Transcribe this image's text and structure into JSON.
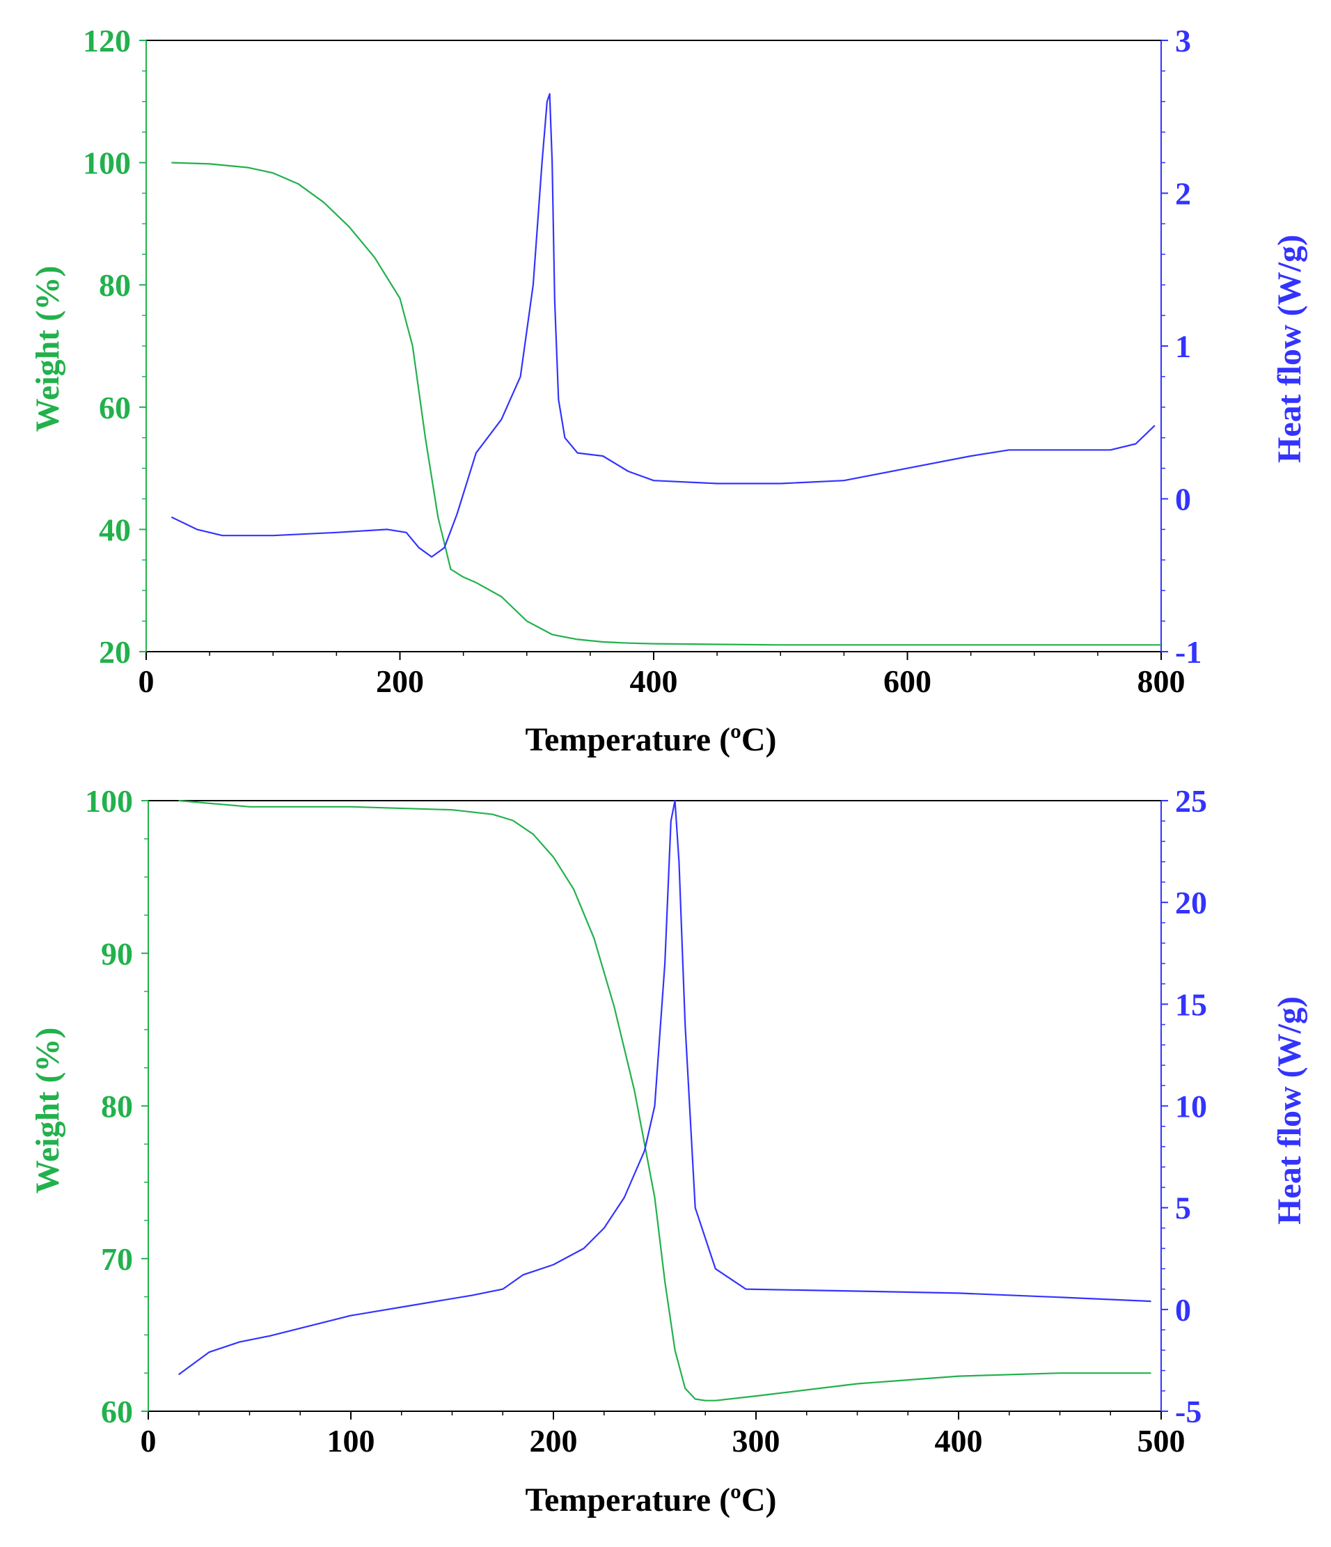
{
  "colors": {
    "weight": "#22B14C",
    "heat_flow": "#3333FF",
    "axis": "#000000"
  },
  "chart_data": [
    {
      "type": "line",
      "xlabel": "Temperature (ºC)",
      "ylabel_left": "Weight (%)",
      "ylabel_right": "Heat flow (W/g)",
      "xlim": [
        0,
        800
      ],
      "ylim_left": [
        20,
        120
      ],
      "ylim_right": [
        -1,
        3
      ],
      "x_ticks": [
        "0",
        "200",
        "400",
        "600",
        "800"
      ],
      "y_left_ticks": [
        "20",
        "40",
        "60",
        "80",
        "100",
        "120"
      ],
      "y_right_ticks": [
        "-1",
        "0",
        "1",
        "2",
        "3"
      ],
      "grid": false,
      "series": [
        {
          "axis": "left",
          "color": "#22B14C",
          "x": [
            20,
            50,
            80,
            100,
            120,
            140,
            160,
            180,
            200,
            210,
            220,
            230,
            240,
            250,
            260,
            280,
            300,
            320,
            340,
            360,
            380,
            400,
            450,
            500,
            600,
            700,
            800
          ],
          "y": [
            100,
            99.8,
            99.2,
            98.3,
            96.5,
            93.5,
            89.5,
            84.5,
            77.8,
            70,
            55,
            42,
            33.5,
            32.2,
            31.3,
            29,
            25,
            22.8,
            22,
            21.6,
            21.4,
            21.3,
            21.2,
            21.1,
            21.1,
            21.1,
            21.1
          ]
        },
        {
          "axis": "right",
          "color": "#3333FF",
          "x": [
            20,
            40,
            60,
            100,
            150,
            190,
            205,
            215,
            225,
            235,
            245,
            260,
            280,
            295,
            305,
            312,
            316,
            318,
            320,
            322,
            325,
            330,
            340,
            360,
            380,
            400,
            450,
            500,
            550,
            600,
            650,
            680,
            720,
            760,
            780,
            795
          ],
          "y": [
            -0.12,
            -0.2,
            -0.24,
            -0.24,
            -0.22,
            -0.2,
            -0.22,
            -0.32,
            -0.38,
            -0.32,
            -0.1,
            0.3,
            0.52,
            0.8,
            1.4,
            2.2,
            2.6,
            2.65,
            2.2,
            1.3,
            0.65,
            0.4,
            0.3,
            0.28,
            0.18,
            0.12,
            0.1,
            0.1,
            0.12,
            0.2,
            0.28,
            0.32,
            0.32,
            0.32,
            0.36,
            0.48
          ]
        }
      ]
    },
    {
      "type": "line",
      "xlabel": "Temperature (ºC)",
      "ylabel_left": "Weight (%)",
      "ylabel_right": "Heat flow (W/g)",
      "xlim": [
        0,
        500
      ],
      "ylim_left": [
        60,
        100
      ],
      "ylim_right": [
        -5,
        25
      ],
      "x_ticks": [
        "0",
        "100",
        "200",
        "300",
        "400",
        "500"
      ],
      "y_left_ticks": [
        "60",
        "70",
        "80",
        "90",
        "100"
      ],
      "y_right_ticks": [
        "-5",
        "0",
        "5",
        "10",
        "15",
        "20",
        "25"
      ],
      "grid": false,
      "series": [
        {
          "axis": "left",
          "color": "#22B14C",
          "x": [
            15,
            50,
            100,
            150,
            170,
            180,
            190,
            200,
            210,
            220,
            230,
            240,
            250,
            255,
            260,
            265,
            270,
            275,
            280,
            300,
            350,
            400,
            450,
            495
          ],
          "y": [
            100,
            99.6,
            99.6,
            99.4,
            99.1,
            98.7,
            97.8,
            96.3,
            94.2,
            91,
            86.5,
            81,
            74,
            68.5,
            64,
            61.5,
            60.8,
            60.7,
            60.7,
            61,
            61.8,
            62.3,
            62.5,
            62.5
          ]
        },
        {
          "axis": "right",
          "color": "#3333FF",
          "x": [
            15,
            30,
            45,
            60,
            80,
            100,
            130,
            160,
            175,
            185,
            200,
            215,
            225,
            235,
            245,
            250,
            255,
            258,
            260,
            262,
            265,
            270,
            280,
            295,
            350,
            400,
            450,
            495
          ],
          "y": [
            -3.2,
            -2.1,
            -1.6,
            -1.3,
            -0.8,
            -0.3,
            0.2,
            0.7,
            1,
            1.7,
            2.2,
            3,
            4,
            5.5,
            7.8,
            10,
            17,
            24,
            25,
            22,
            14,
            5,
            2,
            1,
            0.9,
            0.8,
            0.6,
            0.4
          ]
        }
      ]
    }
  ]
}
